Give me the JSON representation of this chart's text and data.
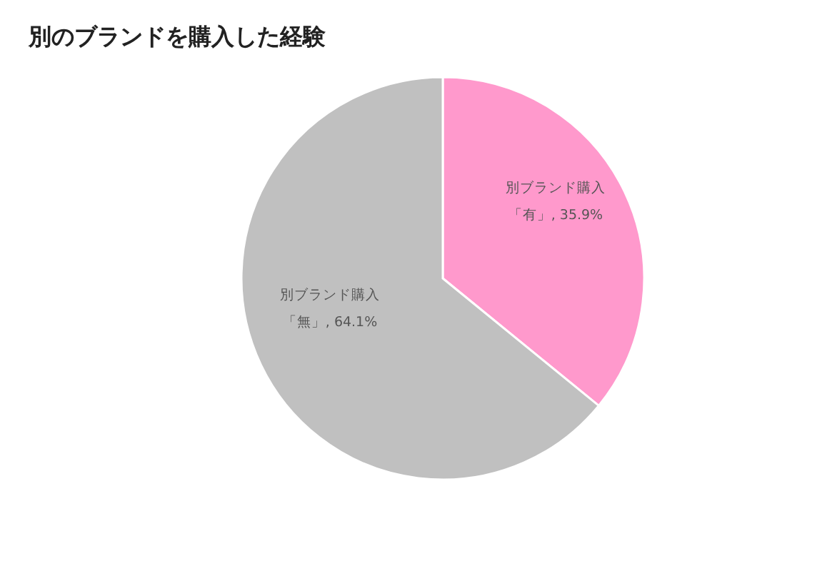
{
  "chart_data": {
    "type": "pie",
    "title": "別のブランドを購入した経験",
    "categories": [
      "別ブランド購入「有」",
      "別ブランド購入「無」"
    ],
    "values": [
      35.9,
      64.1
    ],
    "value_labels": [
      ", 35.9%",
      ", 64.1%"
    ],
    "colors": [
      "#ff99cc",
      "#c0c0c0"
    ]
  }
}
